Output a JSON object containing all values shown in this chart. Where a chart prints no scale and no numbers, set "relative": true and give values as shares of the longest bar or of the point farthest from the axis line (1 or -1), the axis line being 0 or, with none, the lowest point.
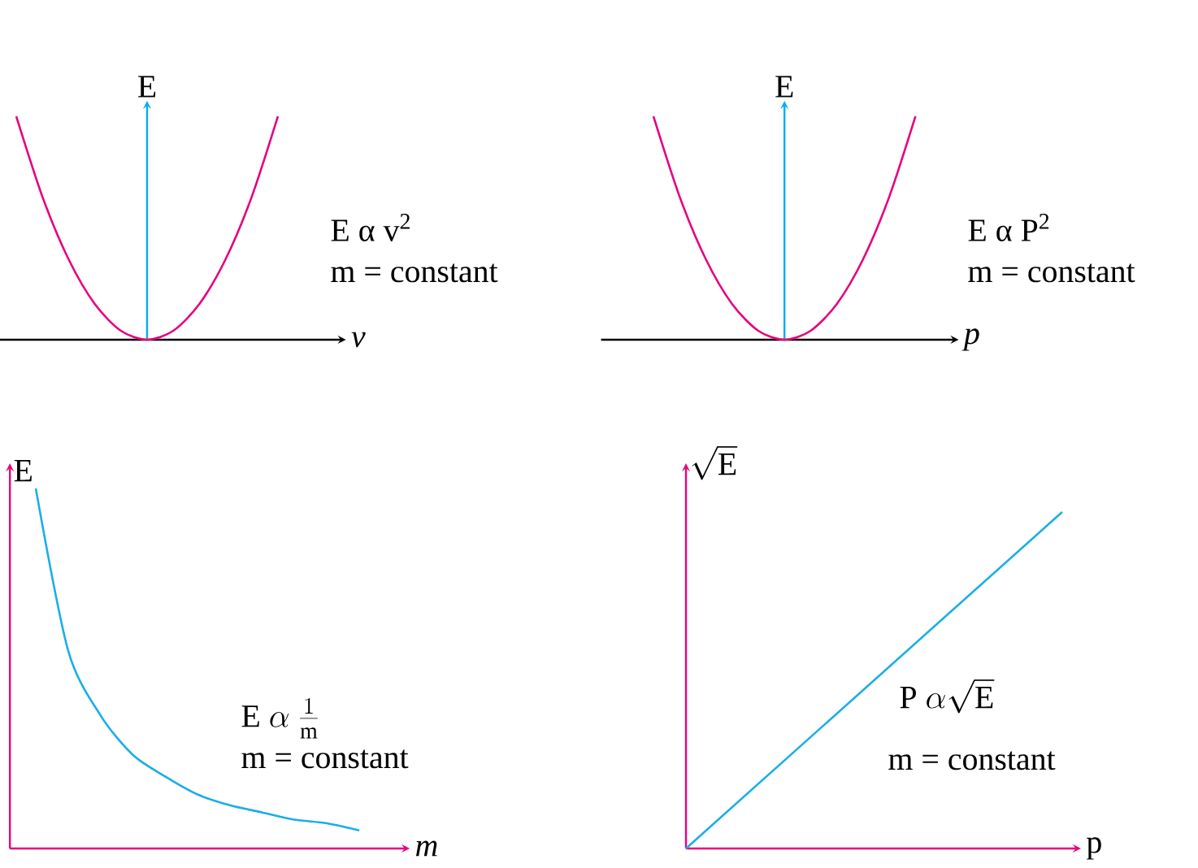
{
  "chart_data": [
    {
      "type": "line",
      "relative": true,
      "xlabel": "v",
      "ylabel": "E",
      "categories": [
        null,
        null,
        null,
        null,
        null,
        null,
        null,
        null,
        null,
        null,
        null
      ],
      "series": [
        {
          "color": "#e6007e",
          "values": [
            1,
            0.64,
            0.36,
            0.16,
            0.04,
            0,
            0.04,
            0.16,
            0.36,
            0.64,
            1
          ]
        }
      ],
      "annotations": [
        "E α v$^{2}$",
        "m = constant"
      ]
    },
    {
      "type": "line",
      "relative": true,
      "xlabel": "p",
      "ylabel": "E",
      "categories": [
        null,
        null,
        null,
        null,
        null,
        null,
        null,
        null,
        null,
        null,
        null
      ],
      "series": [
        {
          "color": "#e6007e",
          "values": [
            1,
            0.64,
            0.36,
            0.16,
            0.04,
            0,
            0.04,
            0.16,
            0.36,
            0.64,
            1
          ]
        }
      ],
      "annotations": [
        "E α P$^{2}$",
        "m = constant"
      ]
    },
    {
      "type": "line",
      "relative": true,
      "xlabel": "m",
      "ylabel": "E",
      "categories": [
        null,
        null,
        null,
        null,
        null,
        null,
        null,
        null,
        null,
        null,
        null
      ],
      "series": [
        {
          "color": "#1aaee8",
          "values": [
            1,
            0.55,
            0.37,
            0.26,
            0.2,
            0.15,
            0.12,
            0.1,
            0.08,
            0.07,
            0.05
          ]
        }
      ],
      "annotations": [
        "\\mathrm{E}\\ \\alpha\\ \\frac{1}{\\mathrm{m}}",
        "m = constant"
      ]
    },
    {
      "type": "line",
      "relative": true,
      "xlabel": "p",
      "ylabel": "\\sqrt{\\mathrm{E}}",
      "categories": [
        null,
        null
      ],
      "series": [
        {
          "color": "#1aaee8",
          "values": [
            0,
            1
          ]
        }
      ],
      "annotations": [
        "\\mathrm{P}\\ \\alpha\\sqrt{\\mathrm{E}}",
        "m = constant"
      ]
    }
  ]
}
